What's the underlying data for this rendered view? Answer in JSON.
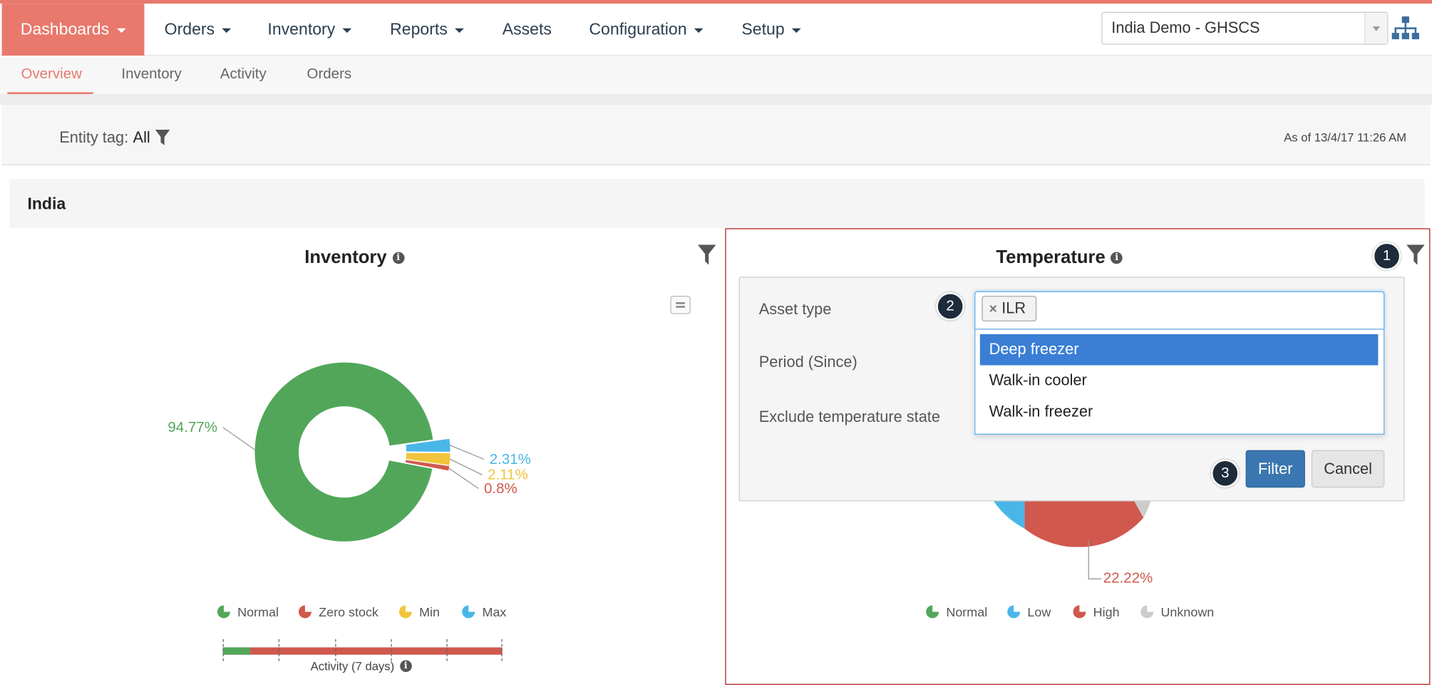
{
  "nav": {
    "items": [
      {
        "label": "Dashboards",
        "active": true
      },
      {
        "label": "Orders"
      },
      {
        "label": "Inventory"
      },
      {
        "label": "Reports"
      },
      {
        "label": "Assets"
      },
      {
        "label": "Configuration"
      },
      {
        "label": "Setup"
      }
    ],
    "domain_select": "India Demo - GHSCS"
  },
  "subnav": {
    "items": [
      "Overview",
      "Inventory",
      "Activity",
      "Orders"
    ],
    "active": "Overview"
  },
  "entity_bar": {
    "label": "Entity tag:",
    "value": "All",
    "as_of": "As of 13/4/17 11:26 AM"
  },
  "section": {
    "title": "India"
  },
  "inventory_chart": {
    "title": "Inventory",
    "chart_data": {
      "type": "pie",
      "title": "Inventory",
      "slices": [
        {
          "label": "Normal",
          "value": 94.77,
          "display": "94.77%",
          "color": "#52a65a"
        },
        {
          "label": "Max",
          "value": 2.31,
          "display": "2.31%",
          "color": "#4ab6e8"
        },
        {
          "label": "Min",
          "value": 2.11,
          "display": "2.11%",
          "color": "#f2c43c"
        },
        {
          "label": "Zero stock",
          "value": 0.8,
          "display": "0.8%",
          "color": "#d0584c"
        }
      ]
    },
    "legend": [
      {
        "label": "Normal",
        "color": "#52a65a"
      },
      {
        "label": "Zero stock",
        "color": "#d0584c"
      },
      {
        "label": "Min",
        "color": "#f2c43c"
      },
      {
        "label": "Max",
        "color": "#4ab6e8"
      }
    ],
    "activity_label": "Activity (7 days)"
  },
  "temperature_chart": {
    "title": "Temperature",
    "visible_label": "22.22%",
    "legend": [
      {
        "label": "Normal",
        "color": "#52a65a"
      },
      {
        "label": "Low",
        "color": "#4ab6e8"
      },
      {
        "label": "High",
        "color": "#d0584c"
      },
      {
        "label": "Unknown",
        "color": "#cccccc"
      }
    ]
  },
  "filter_popup": {
    "asset_type_label": "Asset type",
    "period_label": "Period (Since)",
    "exclude_label": "Exclude temperature state",
    "selected_tag": "ILR",
    "options": [
      "Deep freezer",
      "Walk-in cooler",
      "Walk-in freezer"
    ],
    "filter_button": "Filter",
    "cancel_button": "Cancel"
  },
  "badges": [
    "1",
    "2",
    "3"
  ]
}
